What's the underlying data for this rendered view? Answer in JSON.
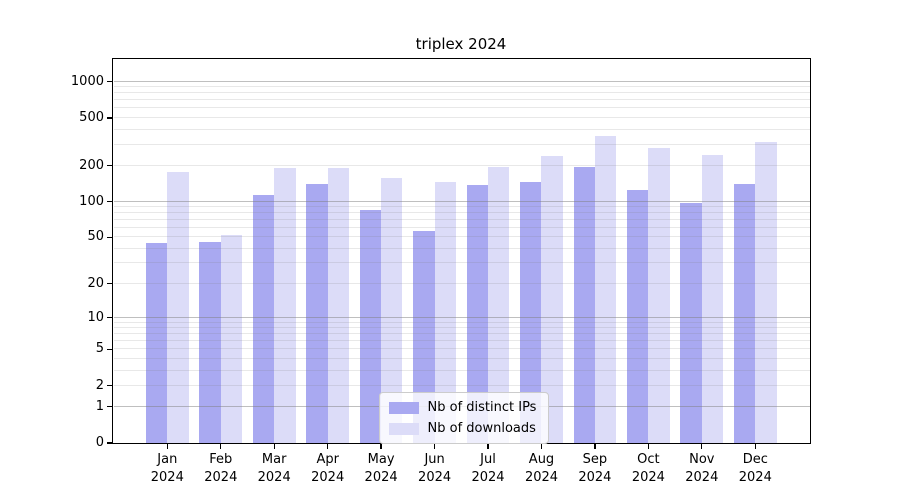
{
  "title": "triplex 2024",
  "chart_data": {
    "type": "bar",
    "title": "triplex 2024",
    "months": [
      "Jan",
      "Feb",
      "Mar",
      "Apr",
      "May",
      "Jun",
      "Jul",
      "Aug",
      "Sep",
      "Oct",
      "Nov",
      "Dec"
    ],
    "year": "2024",
    "series": [
      {
        "name": "Nb of distinct IPs",
        "color": "#a9a9f1",
        "values": [
          45,
          46,
          114,
          140,
          86,
          57,
          138,
          147,
          195,
          126,
          97,
          140
        ]
      },
      {
        "name": "Nb of downloads",
        "color": "#dcdcf8",
        "values": [
          178,
          52,
          190,
          193,
          157,
          147,
          197,
          240,
          355,
          283,
          245,
          315
        ]
      }
    ],
    "yscale": "log1p",
    "yticks": [
      0,
      1,
      2,
      5,
      10,
      20,
      50,
      100,
      200,
      500,
      1000
    ],
    "major_grid_values": [
      1,
      10,
      100,
      1000
    ],
    "ylim": [
      0,
      1516
    ],
    "grid": "horizontal",
    "legend_position": "lower center",
    "colors": {
      "spine": "#000000",
      "major_grid": "#808080",
      "minor_grid": "#c8c8c8",
      "background": "#ffffff"
    }
  }
}
